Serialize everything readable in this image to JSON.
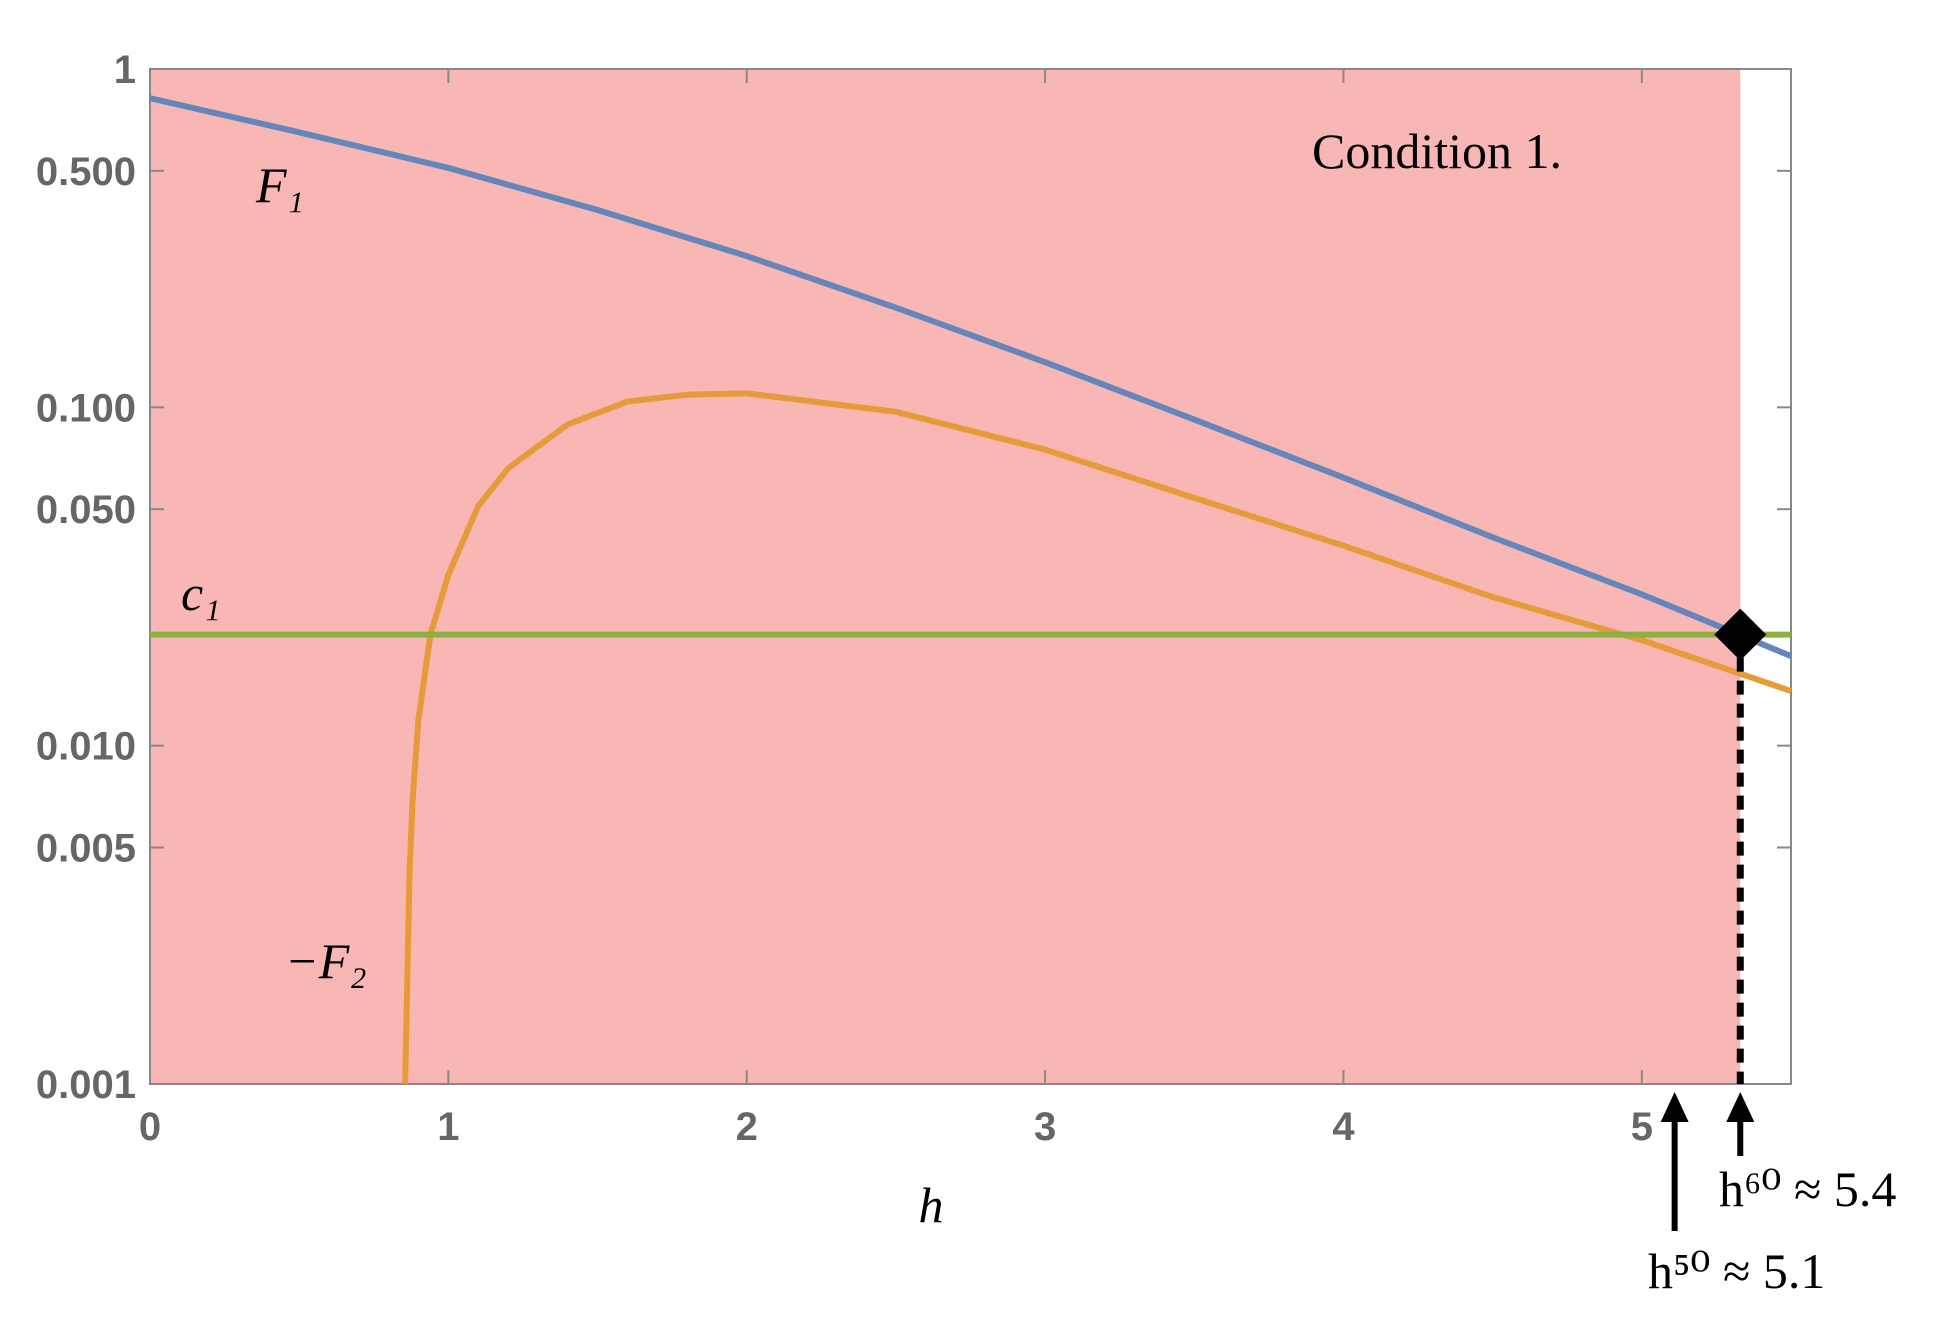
{
  "chart_data": {
    "type": "line",
    "x_label": "h",
    "xlim": [
      0,
      5.5
    ],
    "xticks": [
      0,
      1,
      2,
      3,
      4,
      5
    ],
    "ylim": [
      0.001,
      1
    ],
    "log_y": true,
    "yticks": [
      0.001,
      0.005,
      {
        "value": 0.01,
        "label": "0.010"
      },
      {
        "value": 0.05,
        "label": "0.050"
      },
      {
        "value": 0.1,
        "label": "0.100"
      },
      {
        "value": 0.5,
        "label": "0.500"
      },
      1
    ],
    "shade": {
      "x": [
        0,
        5.33
      ],
      "color": "#f8b7b5",
      "label": "Condition 1."
    },
    "series": [
      {
        "name": "F₁",
        "color": "#6586bb",
        "x": [
          0,
          0.5,
          1,
          1.5,
          2,
          2.5,
          3,
          3.5,
          4,
          4.5,
          5,
          5.5
        ],
        "values": [
          0.82,
          0.65,
          0.51,
          0.383,
          0.28,
          0.197,
          0.136,
          0.092,
          0.062,
          0.0413,
          0.028,
          0.0184
        ]
      },
      {
        "name": "−F₂",
        "color": "#e59b3a",
        "x": [
          0.855,
          0.87,
          0.88,
          0.9,
          0.94,
          1.0,
          1.1,
          1.2,
          1.4,
          1.6,
          1.8,
          2.0,
          2.5,
          3,
          3.5,
          4,
          4.5,
          5,
          5.5
        ],
        "values": [
          0.001,
          0.0042,
          0.0069,
          0.012,
          0.0213,
          0.032,
          0.051,
          0.066,
          0.089,
          0.104,
          0.109,
          0.11,
          0.097,
          0.075,
          0.054,
          0.039,
          0.0275,
          0.0205,
          0.0145
        ]
      },
      {
        "name": "c₁",
        "color": "#8db042",
        "x": [
          0,
          5.5
        ],
        "values": [
          0.0213,
          0.0213
        ]
      }
    ],
    "point": {
      "x": 5.33,
      "y": 0.0213
    },
    "annotations": [
      {
        "text": "h⁵⁰ ≈ 5.1",
        "x": 5.11
      },
      {
        "text": "h⁶⁰ ≈ 5.4",
        "x": 5.33
      }
    ]
  }
}
